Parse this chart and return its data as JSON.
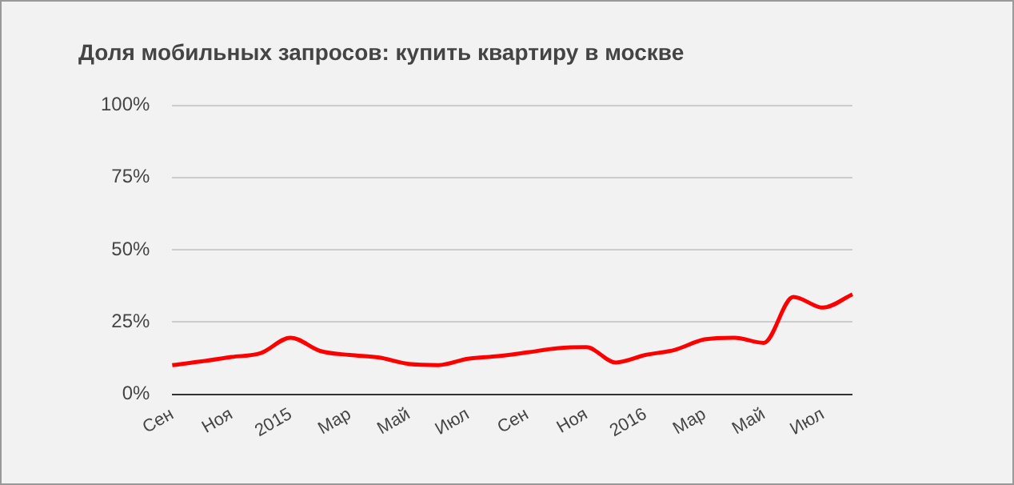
{
  "chart_data": {
    "type": "line",
    "title": "Доля мобильных запросов: купить квартиру в москве",
    "categories": [
      "Сен",
      null,
      "Ноя",
      null,
      "2015",
      null,
      "Мар",
      null,
      "Май",
      null,
      "Июл",
      null,
      "Сен",
      null,
      "Ноя",
      null,
      "2016",
      null,
      "Мар",
      null,
      "Май",
      null,
      "Июл",
      null
    ],
    "series": [
      {
        "color": "#ff0000",
        "values": [
          10.1,
          11.4,
          12.9,
          14.3,
          19.6,
          15,
          13.6,
          12.7,
          10.5,
          10.1,
          12.3,
          13.2,
          14.5,
          15.9,
          16.3,
          11,
          13.6,
          15.4,
          19,
          19.6,
          17.8,
          33.7,
          30,
          34.6
        ]
      }
    ],
    "ylim": [
      0,
      100
    ],
    "yticks": [
      {
        "value": 0,
        "label": "0%"
      },
      {
        "value": 25,
        "label": "25%"
      },
      {
        "value": 50,
        "label": "50%"
      },
      {
        "value": 75,
        "label": "75%"
      },
      {
        "value": 100,
        "label": "100%"
      }
    ],
    "grid": "y",
    "legend": false,
    "marker": "none",
    "line_style": "solid"
  }
}
